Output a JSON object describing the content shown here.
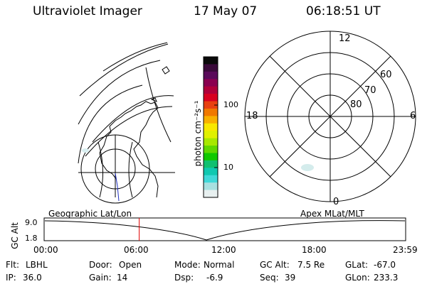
{
  "header": {
    "instrument": "Ultraviolet Imager",
    "date": "17 May 07",
    "time": "06:18:51 UT"
  },
  "colorbar": {
    "unit_label": "photon cm⁻²s⁻¹",
    "tick_labels": [
      "100",
      "10"
    ],
    "colors": [
      "#0a0a0a",
      "#3a0a3a",
      "#5a0a5a",
      "#8a0050",
      "#b0003a",
      "#d80020",
      "#e84010",
      "#f07800",
      "#f8b000",
      "#f8e800",
      "#e0f000",
      "#a8e800",
      "#60d800",
      "#10c800",
      "#10c070",
      "#10c8b0",
      "#40d8d8",
      "#a8e0e0",
      "#e8f0f0"
    ]
  },
  "polar_plot": {
    "mlt_labels": {
      "top": "12",
      "bottom": "0",
      "left": "18",
      "right": "6"
    },
    "lat_labels": [
      "60",
      "70",
      "80"
    ]
  },
  "timeline": {
    "y_axis_label": "GC Alt",
    "y_ticks": [
      "9.0",
      "1.8"
    ],
    "left_label": "Geographic Lat/Lon",
    "right_label": "Apex MLat/MLT",
    "time_ticks": [
      "00:00",
      "06:00",
      "12:00",
      "18:00",
      "23:59"
    ],
    "marker_color": "#e00000",
    "marker_fraction": 0.263
  },
  "status": {
    "row1": [
      {
        "label": "Flt:",
        "value": "LBHL"
      },
      {
        "label": "Door:",
        "value": "Open"
      },
      {
        "label": "Mode:",
        "value": "Normal"
      },
      {
        "label": "GC Alt:",
        "value": "7.5 Re"
      },
      {
        "label": "GLat:",
        "value": "-67.0"
      }
    ],
    "row2": [
      {
        "label": "IP:",
        "value": "36.0"
      },
      {
        "label": "Gain:",
        "value": "14"
      },
      {
        "label": "Dsp:",
        "value": "-6.9"
      },
      {
        "label": "Seq:",
        "value": "39"
      },
      {
        "label": "GLon:",
        "value": "233.3"
      }
    ]
  }
}
